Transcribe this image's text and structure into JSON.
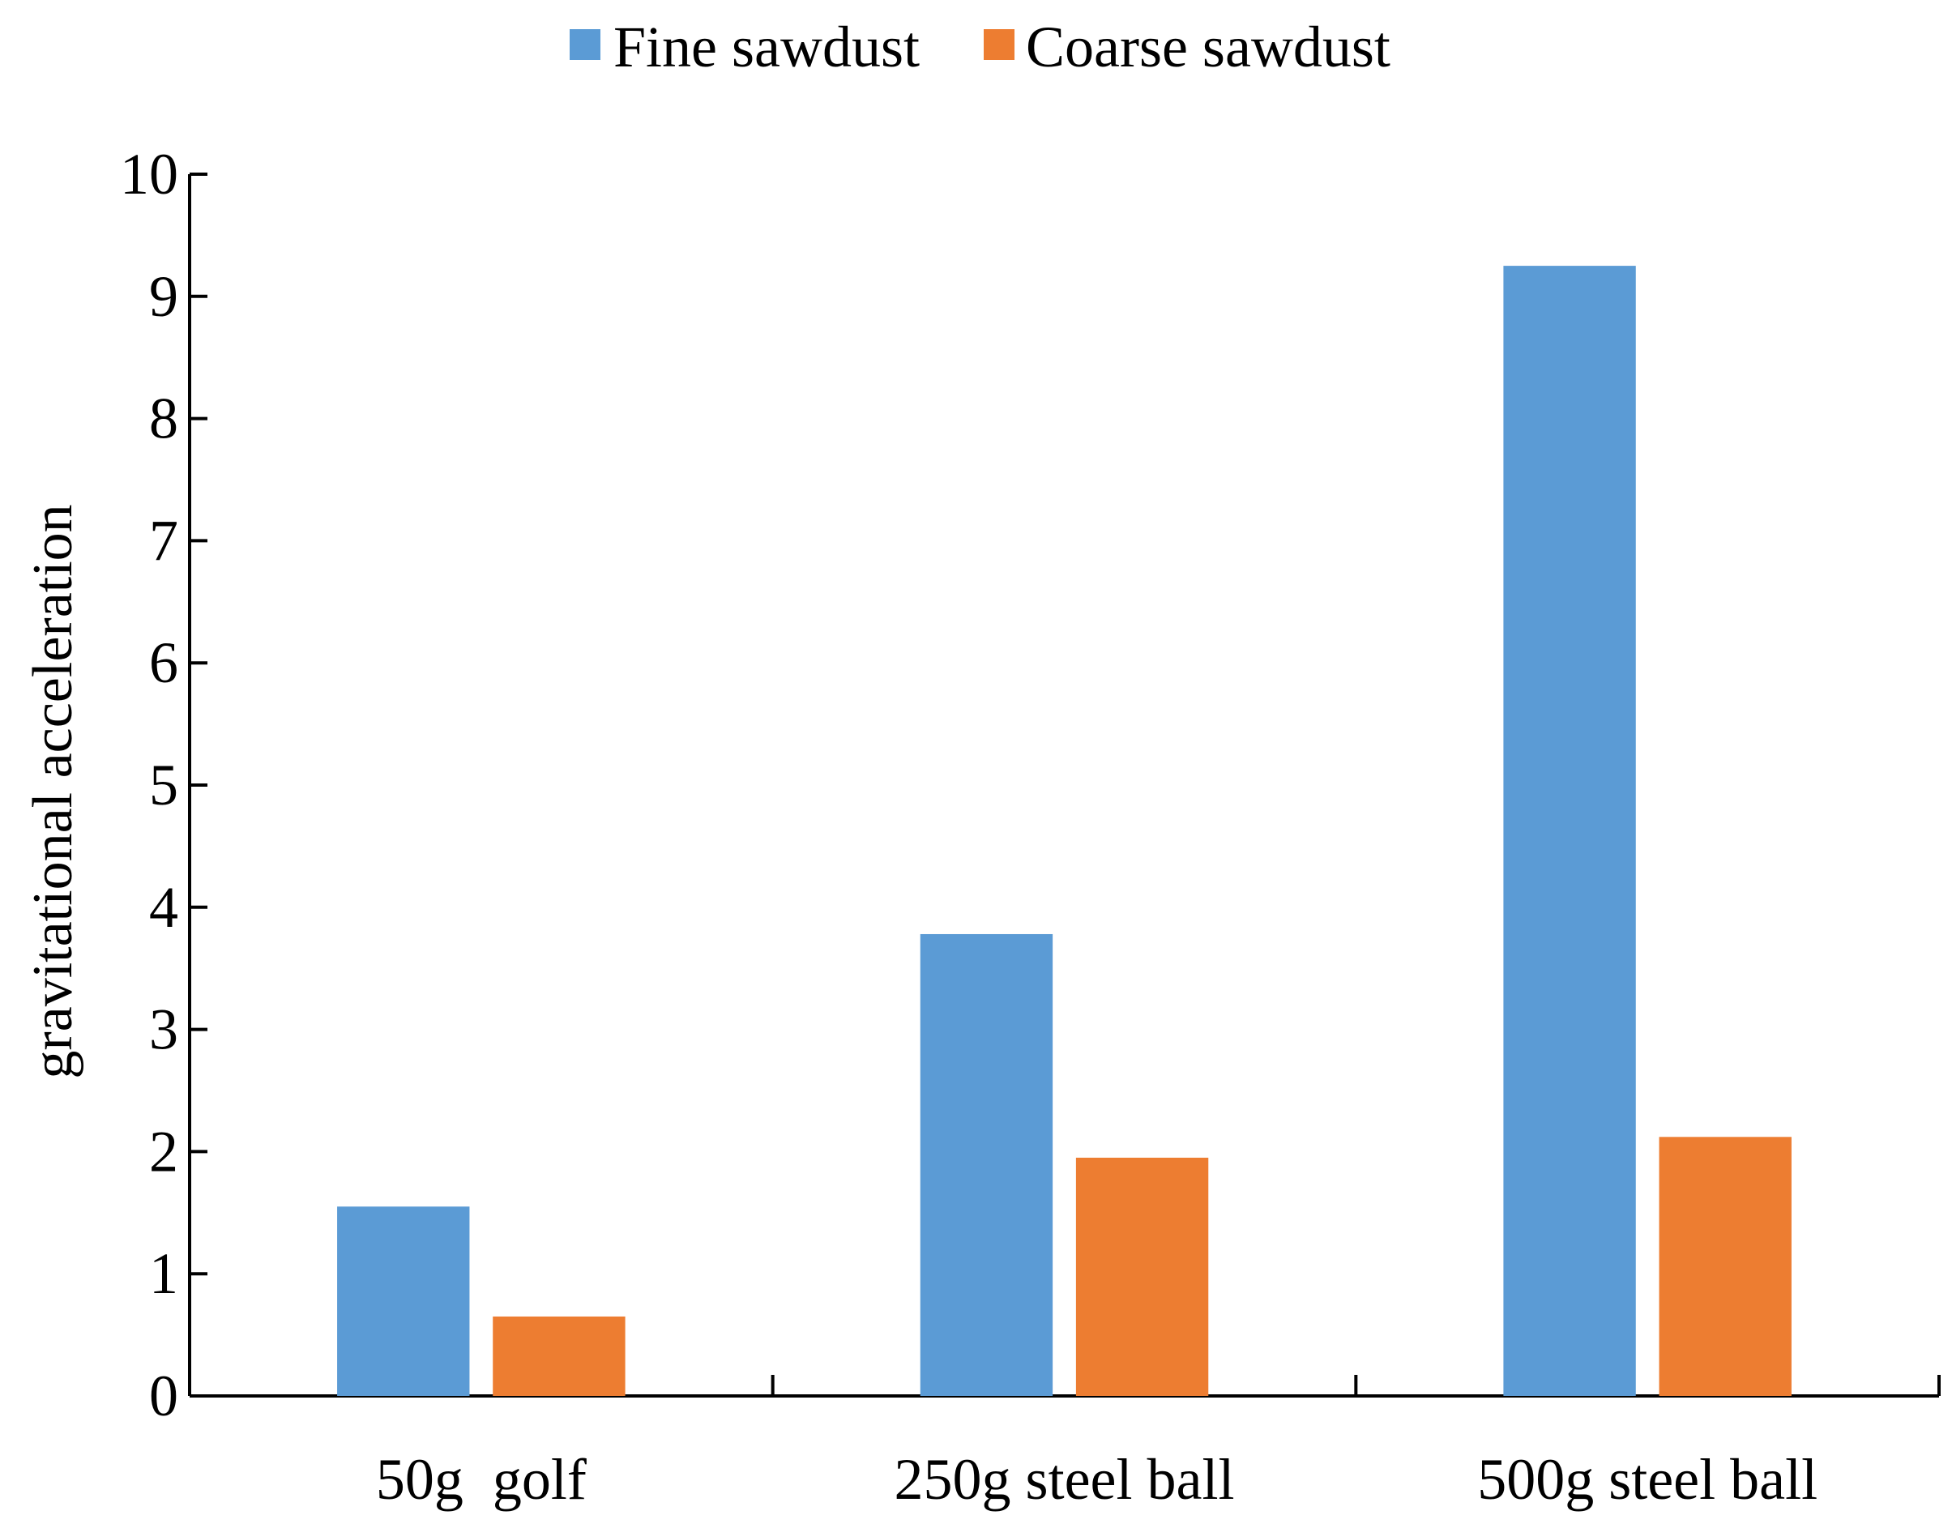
{
  "chart_data": {
    "type": "bar",
    "title": "",
    "xlabel": "",
    "ylabel": "gravitational acceleration",
    "ylim": [
      0,
      10
    ],
    "yticks": [
      "0",
      "1",
      "2",
      "3",
      "4",
      "5",
      "6",
      "7",
      "8",
      "9",
      "10"
    ],
    "categories": [
      "50g  golf",
      "250g steel ball",
      "500g steel ball"
    ],
    "series": [
      {
        "name": "Fine sawdust",
        "color": "#5B9BD5",
        "values": [
          1.55,
          3.78,
          9.25
        ]
      },
      {
        "name": "Coarse sawdust",
        "color": "#ED7D31",
        "values": [
          0.65,
          1.95,
          2.12
        ]
      }
    ],
    "legend_position": "top-center",
    "grid": false
  }
}
